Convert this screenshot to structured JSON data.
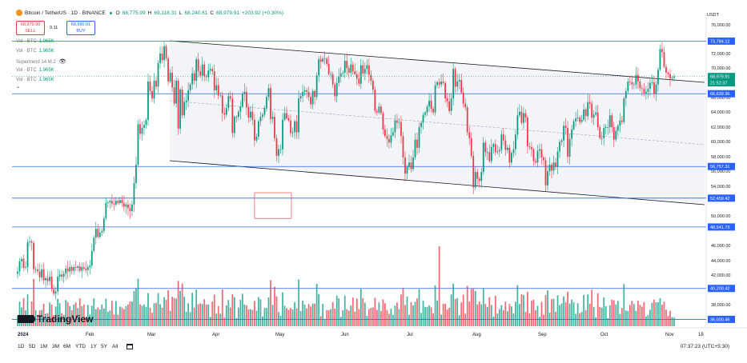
{
  "header": {
    "symbol": "Bitcoin / TetherUS · 1D · BINANCE",
    "ohlc": [
      {
        "k": "O",
        "v": "68,775.99"
      },
      {
        "k": "H",
        "v": "69,118.31"
      },
      {
        "k": "L",
        "v": "68,240.61"
      },
      {
        "k": "C",
        "v": "68,979.91"
      },
      {
        "k": "",
        "v": "+203.92 (+0.30%)"
      }
    ],
    "sell_price": "68,979.90",
    "sell_label": "SELL",
    "spread": "0.11",
    "buy_price": "68,980.01",
    "buy_label": "BUY",
    "currency": "USDT"
  },
  "indicators": [
    {
      "label": "Vol · BTC",
      "value": "1.965K"
    },
    {
      "label": "Vol · BTC",
      "value": "1.965K"
    },
    {
      "label": "Supertrend 14 M.2",
      "value": ""
    },
    {
      "label": "Vol · BTC",
      "value": "1.965K"
    },
    {
      "label": "Vol · BTC",
      "value": "1.965K"
    }
  ],
  "price_axis": [
    "76,000.00",
    "72,000.00",
    "70,000.00",
    "66,000.00",
    "64,000.00",
    "62,000.00",
    "60,000.00",
    "58,000.00",
    "56,000.00",
    "54,000.00",
    "50,000.00",
    "46,000.00",
    "44,000.00",
    "42,000.00",
    "38,000.00"
  ],
  "level_labels": [
    "73,784.12",
    "66,639.36",
    "56,757.31",
    "52,459.42",
    "48,541.73",
    "40,200.42",
    "36,000.46"
  ],
  "current_price": "68,979.91",
  "countdown": "21:52:37",
  "time_axis": [
    "2024",
    "Feb",
    "Mar",
    "Apr",
    "May",
    "Jun",
    "Jul",
    "Aug",
    "Sep",
    "Oct",
    "Nov",
    "18"
  ],
  "range_buttons": [
    "1D",
    "5D",
    "1M",
    "3M",
    "6M",
    "YTD",
    "1Y",
    "5Y",
    "All"
  ],
  "clock": "07:37:23 (UTC+5:30)",
  "brand": "TradingView",
  "colors": {
    "up": "#089981",
    "down": "#f23645",
    "level": "#2962ff",
    "channel": "#131722"
  },
  "chart_data": {
    "type": "candlestick",
    "y_scale_ticks": [
      [
        76000,
        31
      ],
      [
        72000,
        67
      ],
      [
        70000,
        85
      ],
      [
        66000,
        122
      ],
      [
        64000,
        140
      ],
      [
        62000,
        159
      ],
      [
        60000,
        177
      ],
      [
        58000,
        196
      ],
      [
        56000,
        214
      ],
      [
        54000,
        233
      ],
      [
        50000,
        270
      ],
      [
        46000,
        307
      ],
      [
        44000,
        326
      ],
      [
        42000,
        344
      ],
      [
        38000,
        381
      ]
    ],
    "x_months": [
      [
        "2024",
        22
      ],
      [
        "Feb",
        107
      ],
      [
        "Mar",
        184
      ],
      [
        "Apr",
        265
      ],
      [
        "May",
        344
      ],
      [
        "Jun",
        426
      ],
      [
        "Jul",
        508
      ],
      [
        "Aug",
        590
      ],
      [
        "Sep",
        672
      ],
      [
        "Oct",
        750
      ],
      [
        "Nov",
        831
      ]
    ],
    "horizontal_levels": [
      73784.12,
      66639.36,
      56757.31,
      52459.42,
      48541.73,
      40200.42,
      36000.46
    ],
    "closes": [
      42500,
      43900,
      44200,
      43000,
      43100,
      46500,
      46600,
      46400,
      42800,
      42800,
      42500,
      41700,
      42800,
      41300,
      41600,
      41200,
      41800,
      40100,
      39500,
      39800,
      41800,
      42100,
      41800,
      42200,
      42900,
      42500,
      43100,
      42600,
      43100,
      43000,
      43200,
      42600,
      43100,
      42900,
      42700,
      43100,
      43300,
      45300,
      47100,
      48300,
      47200,
      47800,
      48000,
      49700,
      51800,
      51900,
      52100,
      51700,
      51600,
      52100,
      51800,
      52200,
      51800,
      51300,
      51600,
      51100,
      50700,
      51600,
      54500,
      57000,
      62500,
      61200,
      62000,
      62400,
      63100,
      68300,
      67000,
      66000,
      68400,
      67600,
      70800,
      72100,
      71200,
      73100,
      71400,
      68300,
      69500,
      67500,
      65300,
      68400,
      61900,
      67200,
      63700,
      65500,
      65700,
      67100,
      67900,
      69400,
      68400,
      71300,
      69700,
      69100,
      70600,
      69000,
      68900,
      69800,
      70000,
      69700,
      67100,
      67800,
      66400,
      66400,
      64000,
      63800,
      64700,
      66300,
      66000,
      61300,
      63500,
      63500,
      64200,
      64900,
      66600,
      66900,
      64800,
      63400,
      64200,
      63100,
      60300,
      60800,
      62900,
      63500,
      63800,
      64700,
      66200,
      67400,
      63200,
      63500,
      60600,
      58200,
      59100,
      59100,
      63100,
      64000,
      63300,
      63000,
      61300,
      61400,
      62900,
      61400,
      66000,
      66300,
      66900,
      67100,
      66900,
      66200,
      65200,
      67000,
      66200,
      69100,
      71300,
      71000,
      71400,
      71400,
      70700,
      69300,
      69300,
      67900,
      66300,
      68100,
      69000,
      69400,
      69500,
      71100,
      70100,
      69500,
      70600,
      69700,
      69300,
      68700,
      68000,
      70500,
      69400,
      70000,
      70500,
      69200,
      68400,
      67200,
      64300,
      64100,
      64900,
      64000,
      61800,
      60900,
      60500,
      60000,
      61000,
      61400,
      63000,
      62700,
      62800,
      60900,
      58000,
      55800,
      56700,
      57300,
      56400,
      58000,
      60400,
      59300,
      62100,
      62700,
      63800,
      64100,
      64900,
      65700,
      64600,
      64100,
      67800,
      68200,
      67900,
      68300,
      68100,
      66000,
      65600,
      64300,
      66000,
      70000,
      67600,
      68300,
      68500,
      66800,
      65300,
      64800,
      61400,
      60600,
      58200,
      53900,
      56000,
      55100,
      54800,
      56000,
      60000,
      58700,
      58700,
      57500,
      59400,
      59800,
      58700,
      58800,
      59000,
      61100,
      60300,
      59000,
      59300,
      57300,
      58600,
      59100,
      61100,
      63700,
      64200,
      62700,
      64000,
      63400,
      59500,
      59400,
      59100,
      57500,
      57300,
      58900,
      59100,
      58000,
      57600,
      54200,
      56100,
      57000,
      56200,
      57300,
      56700,
      58800,
      60100,
      60300,
      62300,
      62000,
      58100,
      60500,
      61800,
      62900,
      63300,
      63400,
      62800,
      63100,
      64500,
      63600,
      65500,
      65300,
      63400,
      63800,
      64100,
      62100,
      60600,
      60600,
      62000,
      62100,
      62100,
      63700,
      62100,
      60400,
      61600,
      62300,
      63000,
      62800,
      66000,
      67000,
      68300,
      68200,
      67900,
      67900,
      69200,
      68300,
      67400,
      67300,
      66700,
      66900,
      67300,
      68100,
      68200,
      66600,
      67900,
      69900,
      72700,
      72300,
      70300,
      69500,
      69300,
      68700,
      68800,
      68979.91
    ],
    "channel": {
      "upper": [
        [
          212,
          51
        ],
        [
          880,
          103
        ]
      ],
      "lower": [
        [
          212,
          201
        ],
        [
          880,
          256
        ]
      ],
      "mid": [
        [
          212,
          126
        ],
        [
          880,
          181
        ]
      ]
    },
    "consolidation_box": {
      "from": 140,
      "to": 190
    },
    "volume_max_index": 210
  }
}
